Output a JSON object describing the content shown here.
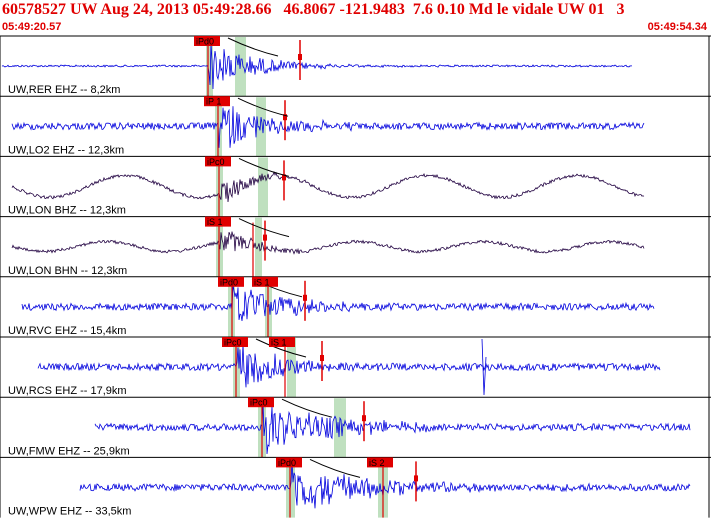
{
  "header": {
    "title": "60578527 UW Aug 24, 2013 05:49:28.66   46.8067 -121.9483  7.6 0.10 Md le vidale UW 01   3",
    "time_start": "05:49:20.57",
    "time_end": "05:49:54.34"
  },
  "colors": {
    "header_text": "#e00000",
    "trace_blue": "#0000dd",
    "trace_dark": "#200040",
    "pick_fill": "#e00000",
    "pick_marker": "#e00000",
    "shade_green": "#bfe0bf",
    "panel_border": "#000000",
    "travel_time_curve": "#000000"
  },
  "traces": [
    {
      "label": "UW,RER EHZ -- 8,2km",
      "color": "trace_blue",
      "kind": "quake",
      "picks": [
        {
          "text": "iPd0"
        }
      ],
      "start": 0.0,
      "end": 0.89
    },
    {
      "label": "UW,LO2 EHZ -- 12,3km",
      "color": "trace_blue",
      "kind": "quake",
      "picks": [
        {
          "text": "iP 1"
        }
      ],
      "start": 0.01,
      "end": 0.91
    },
    {
      "label": "UW,LON BHZ -- 12,3km",
      "color": "trace_dark",
      "kind": "wave",
      "picks": [
        {
          "text": "iPc0"
        }
      ],
      "start": 0.01,
      "end": 0.91
    },
    {
      "label": "UW,LON BHN -- 12,3km",
      "color": "trace_dark",
      "kind": "wave",
      "picks": [
        {
          "text": "iS 1"
        }
      ],
      "start": 0.01,
      "end": 0.91
    },
    {
      "label": "UW,RVC EHZ -- 15,4km",
      "color": "trace_blue",
      "kind": "quake",
      "picks": [
        {
          "text": "iPd0"
        },
        {
          "text": "iS 1"
        }
      ],
      "start": 0.03,
      "end": 0.92
    },
    {
      "label": "UW,RCS EHZ -- 17,9km",
      "color": "trace_blue",
      "kind": "quake",
      "picks": [
        {
          "text": "iPc0"
        },
        {
          "text": "iS 1"
        }
      ],
      "start": 0.04,
      "end": 0.93
    },
    {
      "label": "UW,FMW EHZ -- 25,9km",
      "color": "trace_blue",
      "kind": "quake",
      "picks": [
        {
          "text": "iPc0"
        }
      ],
      "start": 0.09,
      "end": 0.97
    },
    {
      "label": "UW,WPW EHZ -- 33,5km",
      "color": "trace_blue",
      "kind": "quake",
      "picks": [
        {
          "text": "iPd0"
        },
        {
          "text": "iS 2"
        }
      ],
      "start": 0.11,
      "end": 1.0
    }
  ]
}
